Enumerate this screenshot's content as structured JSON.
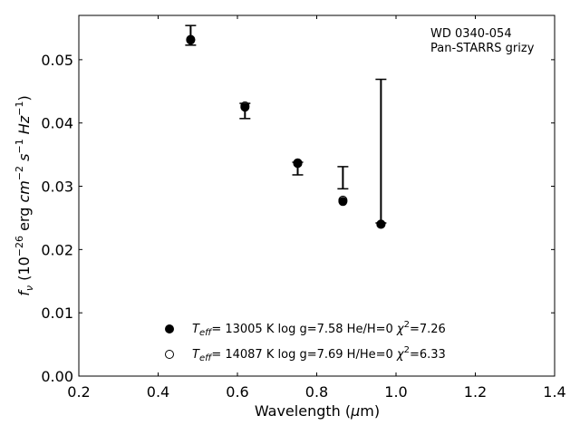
{
  "chart_data": {
    "type": "scatter",
    "title": "",
    "annotation": [
      "WD 0340-054",
      "Pan-STARRS grizy"
    ],
    "xlabel": "Wavelength (μm)",
    "ylabel": "f_ν (10^-26 erg cm^-2 s^-1 Hz^-1)",
    "xlim": [
      0.2,
      1.4
    ],
    "ylim": [
      0.0,
      0.057
    ],
    "xticks": [
      "0.2",
      "0.4",
      "0.6",
      "0.8",
      "1.0",
      "1.2",
      "1.4"
    ],
    "yticks": [
      "0.00",
      "0.01",
      "0.02",
      "0.03",
      "0.04",
      "0.05"
    ],
    "grid": false,
    "legend_position": "bottom-center",
    "observed": {
      "x": [
        0.482,
        0.619,
        0.752,
        0.866,
        0.962
      ],
      "y_low": [
        0.0523,
        0.0407,
        0.0318,
        0.0296,
        0.0242
      ],
      "y_high": [
        0.0554,
        0.0431,
        0.0338,
        0.0331,
        0.0469
      ]
    },
    "series": [
      {
        "name": "Teff= 13005 K  log g=7.58  He/H=0  χ²=7.26",
        "marker": "filled-circle",
        "x": [
          0.482,
          0.619,
          0.752,
          0.866,
          0.962
        ],
        "y": [
          0.0531,
          0.0425,
          0.0336,
          0.0276,
          0.024
        ]
      },
      {
        "name": "Teff= 14087 K  log g=7.69  H/He=0  χ²=6.33",
        "marker": "open-circle",
        "x": [
          0.482,
          0.619,
          0.752,
          0.866,
          0.962
        ],
        "y": [
          0.0532,
          0.0427,
          0.0337,
          0.0278,
          0.024
        ]
      }
    ]
  }
}
